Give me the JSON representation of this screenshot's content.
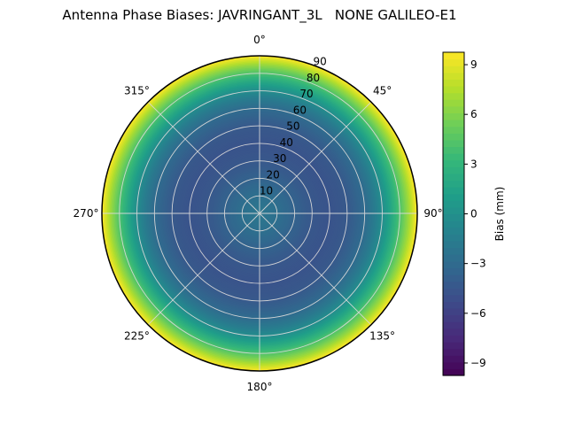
{
  "chart_data": {
    "type": "heatmap",
    "projection": "polar",
    "title": "Antenna Phase Biases: JAVRINGANT_3L   NONE GALILEO-E1",
    "theta_zero_location": "N",
    "theta_direction": "clockwise",
    "theta_tick_labels": [
      "0°",
      "45°",
      "90°",
      "135°",
      "180°",
      "225°",
      "270°",
      "315°"
    ],
    "r_ticks": [
      10,
      20,
      30,
      40,
      50,
      60,
      70,
      80,
      90
    ],
    "r_max": 90,
    "r_label_angle_deg": 22.5,
    "azimuthally_symmetric": true,
    "radial_profile": {
      "zenith_deg": [
        0,
        10,
        20,
        30,
        40,
        50,
        60,
        65,
        70,
        75,
        80,
        85,
        90
      ],
      "bias_mm": [
        -2.0,
        -2.6,
        -3.6,
        -4.4,
        -4.7,
        -4.3,
        -3.0,
        -1.8,
        -0.3,
        1.8,
        4.2,
        6.8,
        9.8
      ]
    },
    "colormap": "viridis",
    "colormap_stops": [
      "#440154",
      "#482878",
      "#3e4989",
      "#31688e",
      "#26828e",
      "#1f9e89",
      "#35b779",
      "#6ece58",
      "#b5de2b",
      "#fde725"
    ],
    "color_range": [
      -9.75,
      9.75
    ],
    "colorbar": {
      "label": "Bias (mm)",
      "ticks": [
        9,
        6,
        3,
        0,
        -3,
        -6,
        -9
      ]
    },
    "grid_color": "#d9d9d9"
  }
}
